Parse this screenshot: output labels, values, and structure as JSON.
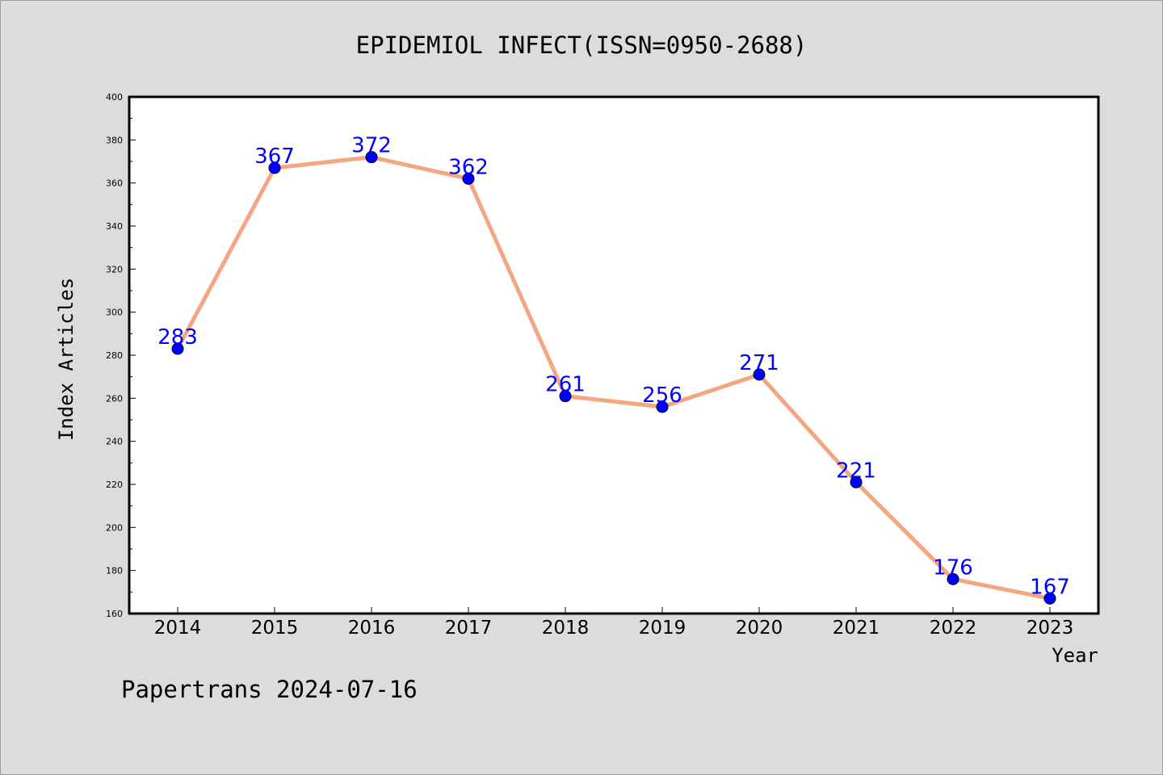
{
  "chart_data": {
    "type": "line",
    "title": "EPIDEMIOL INFECT(ISSN=0950-2688)",
    "xlabel": "Year",
    "ylabel": "Index Articles",
    "categories": [
      "2014",
      "2015",
      "2016",
      "2017",
      "2018",
      "2019",
      "2020",
      "2021",
      "2022",
      "2023"
    ],
    "values": [
      283,
      367,
      372,
      362,
      261,
      256,
      271,
      221,
      176,
      167
    ],
    "data_labels": [
      "283",
      "367",
      "372",
      "362",
      "261",
      "256",
      "271",
      "221",
      "176",
      "167"
    ],
    "ylim": [
      160,
      400
    ],
    "yticks": [
      160,
      180,
      200,
      220,
      240,
      260,
      280,
      300,
      320,
      340,
      360,
      380,
      400
    ],
    "ytick_labels": [
      "160",
      "180",
      "200",
      "220",
      "240",
      "260",
      "280",
      "300",
      "320",
      "340",
      "360",
      "380",
      "400"
    ],
    "grid": false,
    "legend": "none",
    "colors": {
      "line": "#f4a582",
      "marker": "#0000ff",
      "label": "#0000ff",
      "plot_bg": "#ffffff",
      "page_bg": "#dcdcdc"
    }
  },
  "footer": {
    "text": "Papertrans 2024-07-16"
  }
}
